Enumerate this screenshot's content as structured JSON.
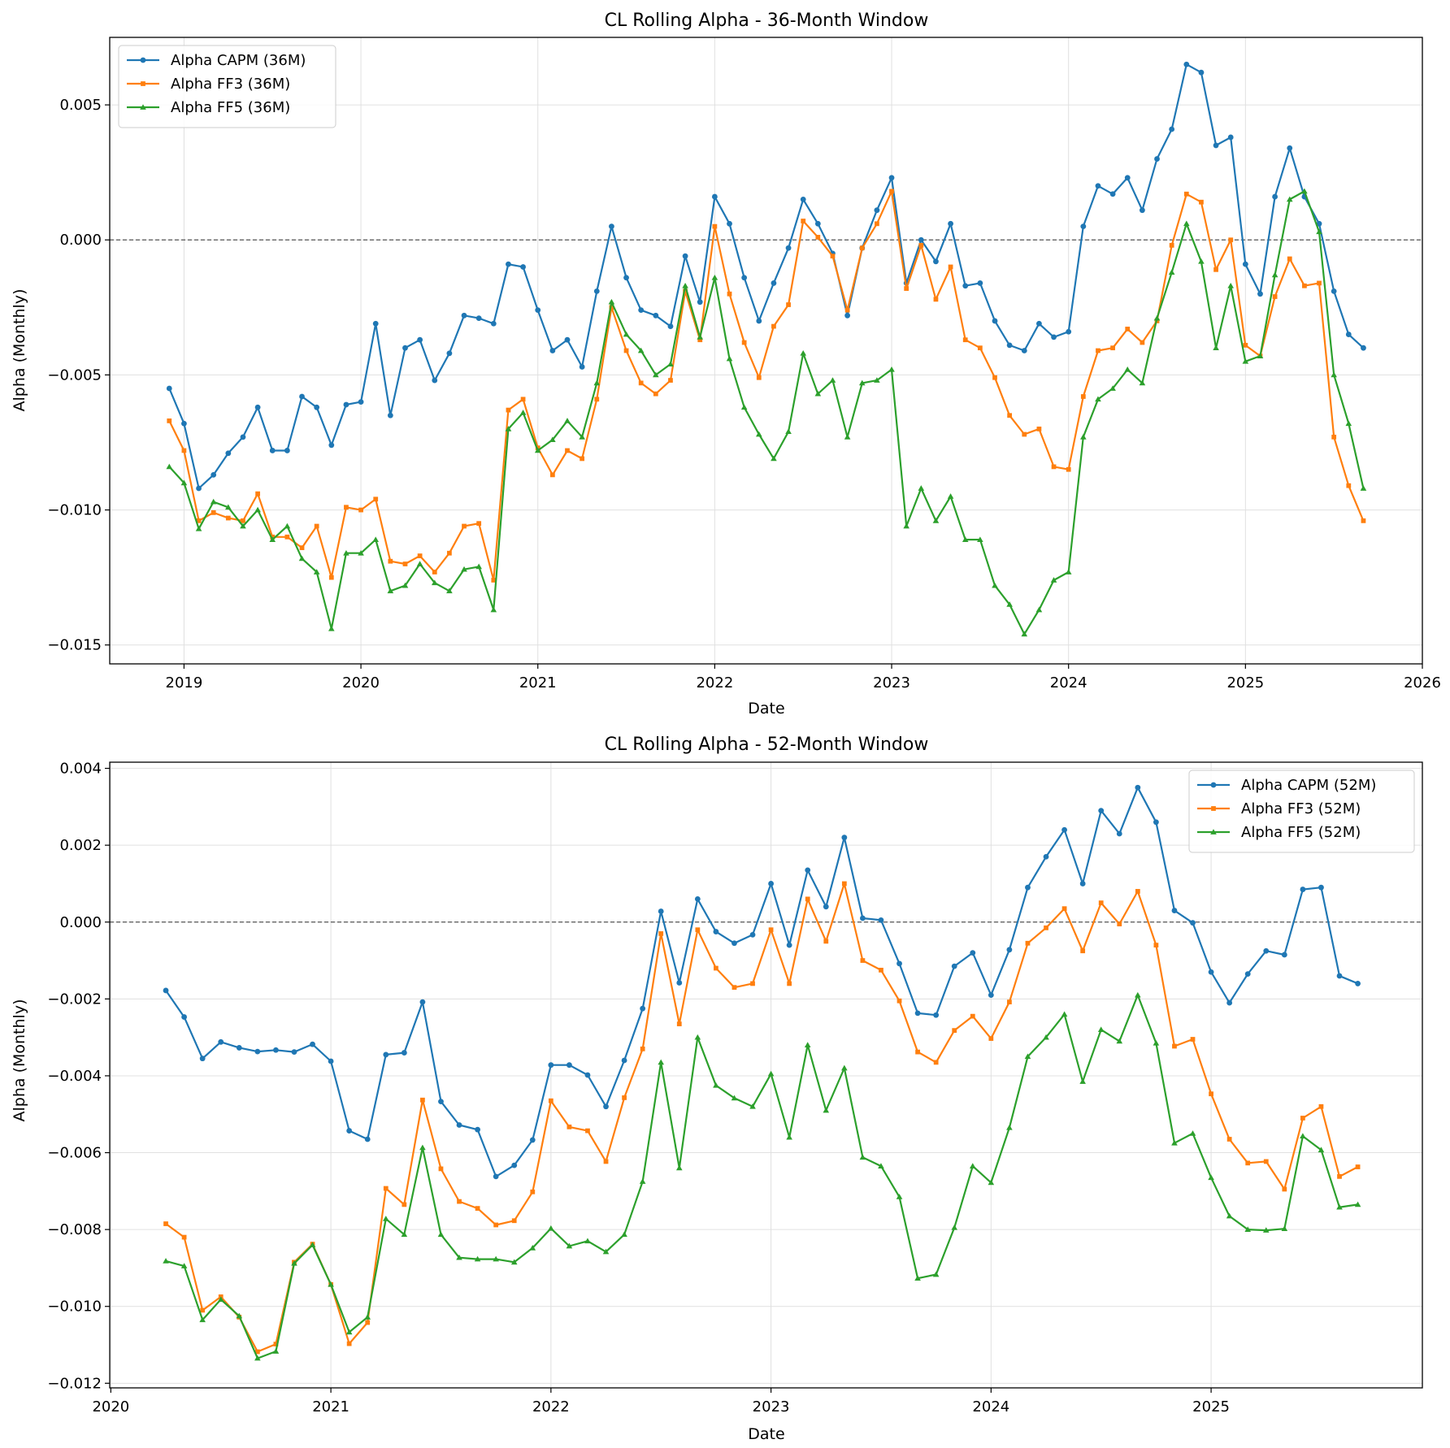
{
  "figure": {
    "background": "#ffffff"
  },
  "colors": {
    "capm": "#1f77b4",
    "ff3": "#ff7f0e",
    "ff5": "#2ca02c",
    "zero_line": "#555555",
    "grid": "#e0e0e0"
  },
  "chart_data": [
    {
      "type": "line",
      "title": "CL Rolling Alpha - 36-Month Window",
      "xlabel": "Date",
      "ylabel": "Alpha (Monthly)",
      "xlim": [
        2018.58,
        2026.0
      ],
      "ylim": [
        -0.0157,
        0.0075
      ],
      "x_ticks": [
        2019,
        2020,
        2021,
        2022,
        2023,
        2024,
        2025,
        2026
      ],
      "x_tick_labels": [
        "2019",
        "2020",
        "2021",
        "2022",
        "2023",
        "2024",
        "2025",
        "2026"
      ],
      "y_ticks": [
        0.005,
        0.0,
        -0.005,
        -0.01,
        -0.015
      ],
      "y_tick_labels": [
        "0.005",
        "0.000",
        "−0.005",
        "−0.010",
        "−0.015"
      ],
      "grid": true,
      "reference_line": 0,
      "legend_position": "upper-left",
      "x_start": "2018-12",
      "series": [
        {
          "name": "Alpha CAPM (36M)",
          "color": "#1f77b4",
          "marker": "circle",
          "values": [
            -0.0055,
            -0.0068,
            -0.0092,
            -0.0087,
            -0.0079,
            -0.0073,
            -0.0062,
            -0.0078,
            -0.0078,
            -0.0058,
            -0.0062,
            -0.0076,
            -0.0061,
            -0.006,
            -0.0031,
            -0.0065,
            -0.004,
            -0.0037,
            -0.0052,
            -0.0042,
            -0.0028,
            -0.0029,
            -0.0031,
            -0.0009,
            -0.001,
            -0.0026,
            -0.0041,
            -0.0037,
            -0.0047,
            -0.0019,
            0.0005,
            -0.0014,
            -0.0026,
            -0.0028,
            -0.0032,
            -0.0006,
            -0.0023,
            0.0016,
            0.0006,
            -0.0014,
            -0.003,
            -0.0016,
            -0.0003,
            0.0015,
            0.0006,
            -0.0005,
            -0.0028,
            -0.0003,
            0.0011,
            0.0023,
            -0.0016,
            0.0,
            -0.0008,
            0.0006,
            -0.0017,
            -0.0016,
            -0.003,
            -0.0039,
            -0.0041,
            -0.0031,
            -0.0036,
            -0.0034,
            0.0005,
            0.002,
            0.0017,
            0.0023,
            0.0011,
            0.003,
            0.0041,
            0.0065,
            0.0062,
            0.0035,
            0.0038,
            -0.0009,
            -0.002,
            0.0016,
            0.0034,
            0.0016,
            0.0006,
            -0.0019,
            -0.0035,
            -0.004
          ]
        },
        {
          "name": "Alpha FF3 (36M)",
          "color": "#ff7f0e",
          "marker": "square",
          "values": [
            -0.0067,
            -0.0078,
            -0.0104,
            -0.0101,
            -0.0103,
            -0.0104,
            -0.0094,
            -0.011,
            -0.011,
            -0.0114,
            -0.0106,
            -0.0125,
            -0.0099,
            -0.01,
            -0.0096,
            -0.0119,
            -0.012,
            -0.0117,
            -0.0123,
            -0.0116,
            -0.0106,
            -0.0105,
            -0.0126,
            -0.0063,
            -0.0059,
            -0.0077,
            -0.0087,
            -0.0078,
            -0.0081,
            -0.0059,
            -0.0025,
            -0.0041,
            -0.0053,
            -0.0057,
            -0.0052,
            -0.0019,
            -0.0037,
            0.0005,
            -0.002,
            -0.0038,
            -0.0051,
            -0.0032,
            -0.0024,
            0.0007,
            0.0001,
            -0.0006,
            -0.0026,
            -0.0003,
            0.0006,
            0.0018,
            -0.0018,
            -0.0002,
            -0.0022,
            -0.001,
            -0.0037,
            -0.004,
            -0.0051,
            -0.0065,
            -0.0072,
            -0.007,
            -0.0084,
            -0.0085,
            -0.0058,
            -0.0041,
            -0.004,
            -0.0033,
            -0.0038,
            -0.003,
            -0.0002,
            0.0017,
            0.0014,
            -0.0011,
            0.0,
            -0.0039,
            -0.0043,
            -0.0021,
            -0.0007,
            -0.0017,
            -0.0016,
            -0.0073,
            -0.0091,
            -0.0104
          ]
        },
        {
          "name": "Alpha FF5 (36M)",
          "color": "#2ca02c",
          "marker": "triangle",
          "values": [
            -0.0084,
            -0.009,
            -0.0107,
            -0.0097,
            -0.0099,
            -0.0106,
            -0.01,
            -0.0111,
            -0.0106,
            -0.0118,
            -0.0123,
            -0.0144,
            -0.0116,
            -0.0116,
            -0.0111,
            -0.013,
            -0.0128,
            -0.012,
            -0.0127,
            -0.013,
            -0.0122,
            -0.0121,
            -0.0137,
            -0.007,
            -0.0064,
            -0.0078,
            -0.0074,
            -0.0067,
            -0.0073,
            -0.0053,
            -0.0023,
            -0.0035,
            -0.0041,
            -0.005,
            -0.0046,
            -0.0017,
            -0.0036,
            -0.0014,
            -0.0044,
            -0.0062,
            -0.0072,
            -0.0081,
            -0.0071,
            -0.0042,
            -0.0057,
            -0.0052,
            -0.0073,
            -0.0053,
            -0.0052,
            -0.0048,
            -0.0106,
            -0.0092,
            -0.0104,
            -0.0095,
            -0.0111,
            -0.0111,
            -0.0128,
            -0.0135,
            -0.0146,
            -0.0137,
            -0.0126,
            -0.0123,
            -0.0073,
            -0.0059,
            -0.0055,
            -0.0048,
            -0.0053,
            -0.0029,
            -0.0012,
            0.0006,
            -0.0008,
            -0.004,
            -0.0017,
            -0.0045,
            -0.0043,
            -0.0013,
            0.0015,
            0.0018,
            0.0003,
            -0.005,
            -0.0068,
            -0.0092
          ]
        }
      ]
    },
    {
      "type": "line",
      "title": "CL Rolling Alpha - 52-Month Window",
      "xlabel": "Date",
      "ylabel": "Alpha (Monthly)",
      "xlim": [
        2019.995,
        2025.96
      ],
      "ylim": [
        -0.01212,
        0.00416
      ],
      "x_ticks": [
        2020,
        2021,
        2022,
        2023,
        2024,
        2025
      ],
      "x_tick_labels": [
        "2020",
        "2021",
        "2022",
        "2023",
        "2024",
        "2025"
      ],
      "y_ticks": [
        0.004,
        0.002,
        0.0,
        -0.002,
        -0.004,
        -0.006,
        -0.008,
        -0.01,
        -0.012
      ],
      "y_tick_labels": [
        "0.004",
        "0.002",
        "0.000",
        "−0.002",
        "−0.004",
        "−0.006",
        "−0.008",
        "−0.010",
        "−0.012"
      ],
      "grid": true,
      "reference_line": 0,
      "legend_position": "upper-right",
      "x_start": "2020-04",
      "series": [
        {
          "name": "Alpha CAPM (52M)",
          "color": "#1f77b4",
          "marker": "circle",
          "values": [
            -0.00178,
            -0.00247,
            -0.00355,
            -0.00312,
            -0.00327,
            -0.00337,
            -0.00333,
            -0.00338,
            -0.00318,
            -0.00362,
            -0.00543,
            -0.00565,
            -0.00345,
            -0.0034,
            -0.00208,
            -0.00467,
            -0.00528,
            -0.0054,
            -0.00662,
            -0.00633,
            -0.00567,
            -0.00372,
            -0.00372,
            -0.00398,
            -0.0048,
            -0.0036,
            -0.00225,
            0.00028,
            -0.00158,
            0.0006,
            -0.00025,
            -0.00055,
            -0.00033,
            0.001,
            -0.0006,
            0.00135,
            0.0004,
            0.0022,
            0.0001,
            5e-05,
            -0.00108,
            -0.00237,
            -0.00242,
            -0.00115,
            -0.0008,
            -0.0019,
            -0.00072,
            0.0009,
            0.0017,
            0.0024,
            0.001,
            0.0029,
            0.0023,
            0.0035,
            0.0026,
            0.0003,
            -2e-05,
            -0.0013,
            -0.0021,
            -0.00135,
            -0.00075,
            -0.00085,
            0.00085,
            0.0009,
            -0.0014,
            -0.0016
          ]
        },
        {
          "name": "Alpha FF3 (52M)",
          "color": "#ff7f0e",
          "marker": "square",
          "values": [
            -0.00785,
            -0.0082,
            -0.0101,
            -0.00975,
            -0.01028,
            -0.01118,
            -0.01098,
            -0.00885,
            -0.00838,
            -0.00943,
            -0.01097,
            -0.01042,
            -0.00693,
            -0.00735,
            -0.00463,
            -0.00642,
            -0.00727,
            -0.00745,
            -0.00788,
            -0.00777,
            -0.00702,
            -0.00465,
            -0.00533,
            -0.00543,
            -0.00623,
            -0.00457,
            -0.0033,
            -0.0003,
            -0.00265,
            -0.0002,
            -0.0012,
            -0.0017,
            -0.0016,
            -0.0002,
            -0.0016,
            0.0006,
            -0.0005,
            0.001,
            -0.001,
            -0.00125,
            -0.00205,
            -0.00338,
            -0.00365,
            -0.00282,
            -0.00245,
            -0.00303,
            -0.00208,
            -0.00055,
            -0.00015,
            0.00035,
            -0.00075,
            0.0005,
            -5e-05,
            0.0008,
            -0.0006,
            -0.00323,
            -0.00305,
            -0.00447,
            -0.00565,
            -0.00627,
            -0.00623,
            -0.00695,
            -0.0051,
            -0.0048,
            -0.00662,
            -0.00637
          ]
        },
        {
          "name": "Alpha FF5 (52M)",
          "color": "#2ca02c",
          "marker": "triangle",
          "values": [
            -0.00882,
            -0.00895,
            -0.01035,
            -0.00982,
            -0.01025,
            -0.01135,
            -0.01117,
            -0.00888,
            -0.0084,
            -0.00943,
            -0.01067,
            -0.01028,
            -0.00772,
            -0.00813,
            -0.00587,
            -0.00813,
            -0.00873,
            -0.00877,
            -0.00877,
            -0.00885,
            -0.00848,
            -0.00797,
            -0.00843,
            -0.0083,
            -0.00858,
            -0.00813,
            -0.00675,
            -0.00365,
            -0.0064,
            -0.003,
            -0.00425,
            -0.00458,
            -0.0048,
            -0.00395,
            -0.0056,
            -0.0032,
            -0.0049,
            -0.0038,
            -0.00612,
            -0.00635,
            -0.00715,
            -0.00927,
            -0.00917,
            -0.00795,
            -0.00635,
            -0.00678,
            -0.00535,
            -0.0035,
            -0.003,
            -0.0024,
            -0.00415,
            -0.0028,
            -0.0031,
            -0.0019,
            -0.00315,
            -0.00575,
            -0.0055,
            -0.00665,
            -0.00765,
            -0.008,
            -0.00802,
            -0.00798,
            -0.00557,
            -0.00593,
            -0.00742,
            -0.00735
          ]
        }
      ]
    }
  ]
}
